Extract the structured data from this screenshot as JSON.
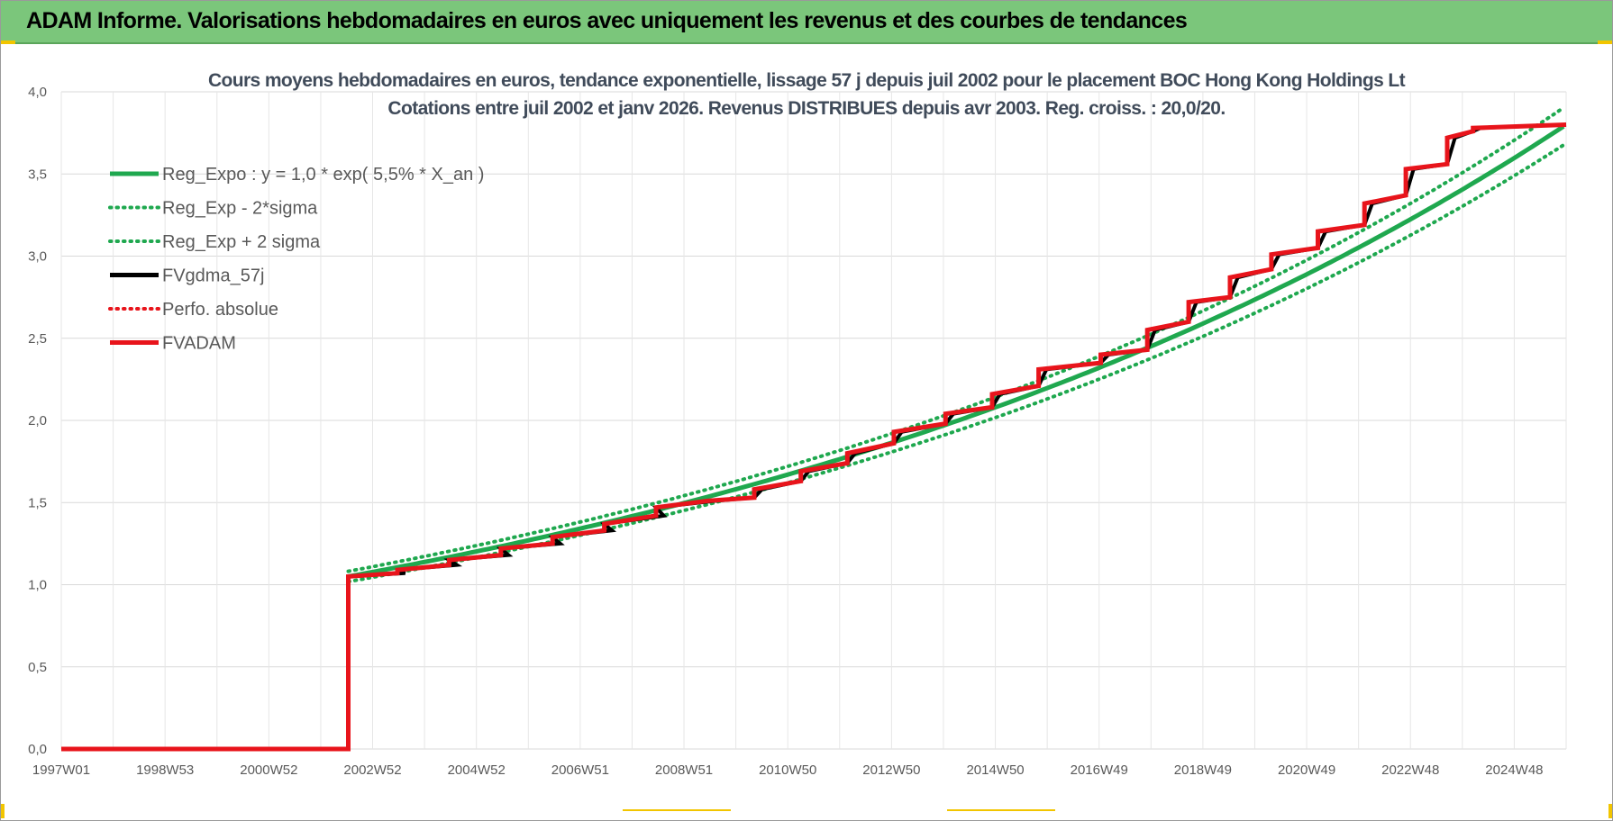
{
  "header": {
    "title": "ADAM Informe. Valorisations hebdomadaires en euros avec uniquement les revenus et des courbes de tendances"
  },
  "colors": {
    "header_bg": "#7bc67b",
    "regression": "#1fa84f",
    "fvgdma": "#000000",
    "fvadam": "#e8141b"
  },
  "chart_data": {
    "type": "line",
    "title_lines": [
      "Cours moyens hebdomadaires en euros, tendance exponentielle, lissage 57 j depuis juil 2002 pour le placement BOC Hong Kong Holdings Lt",
      "Cotations entre juil 2002 et janv 2026. Revenus DISTRIBUES depuis avr 2003. Reg. croiss. : 20,0/20."
    ],
    "x_tick_labels": [
      "1997W01",
      "1998W53",
      "2000W52",
      "2002W52",
      "2004W52",
      "2006W51",
      "2008W51",
      "2010W50",
      "2012W50",
      "2014W50",
      "2016W49",
      "2018W49",
      "2020W49",
      "2022W48",
      "2024W48"
    ],
    "x_range_years": [
      1997.0,
      2026.1
    ],
    "y_tick_labels": [
      "0,0",
      "0,5",
      "1,0",
      "1,5",
      "2,0",
      "2,5",
      "3,0",
      "3,5",
      "4,0"
    ],
    "ylim": [
      0,
      4
    ],
    "legend": [
      {
        "name": "Reg_Expo : y = 1,0 * exp( 5,5% *  X_an )",
        "style": "solid",
        "color": "#1fa84f"
      },
      {
        "name": "Reg_Exp - 2*sigma",
        "style": "dotted",
        "color": "#1fa84f"
      },
      {
        "name": "Reg_Exp + 2 sigma",
        "style": "dotted",
        "color": "#1fa84f"
      },
      {
        "name": "FVgdma_57j",
        "style": "solid",
        "color": "#000000"
      },
      {
        "name": "Perfo. absolue",
        "style": "dotted",
        "color": "#e8141b"
      },
      {
        "name": "FVADAM",
        "style": "solid",
        "color": "#e8141b"
      }
    ],
    "start_year": 2002.55,
    "start_value": 1.05,
    "end_value": 3.8,
    "regression_rate": 0.055,
    "sigma_band": 0.03,
    "fvadam_points": [
      [
        1997.0,
        0.0
      ],
      [
        2002.55,
        0.0
      ],
      [
        2002.55,
        1.05
      ],
      [
        2003.5,
        1.07
      ],
      [
        2003.5,
        1.09
      ],
      [
        2004.5,
        1.12
      ],
      [
        2004.5,
        1.15
      ],
      [
        2005.5,
        1.18
      ],
      [
        2005.5,
        1.22
      ],
      [
        2006.5,
        1.25
      ],
      [
        2006.5,
        1.29
      ],
      [
        2007.5,
        1.33
      ],
      [
        2007.5,
        1.37
      ],
      [
        2008.5,
        1.42
      ],
      [
        2008.5,
        1.47
      ],
      [
        2009.5,
        1.51
      ],
      [
        2010.4,
        1.53
      ],
      [
        2010.4,
        1.58
      ],
      [
        2011.3,
        1.63
      ],
      [
        2011.3,
        1.69
      ],
      [
        2012.2,
        1.74
      ],
      [
        2012.2,
        1.8
      ],
      [
        2013.1,
        1.86
      ],
      [
        2013.1,
        1.93
      ],
      [
        2014.1,
        1.98
      ],
      [
        2014.1,
        2.04
      ],
      [
        2015.0,
        2.08
      ],
      [
        2015.0,
        2.16
      ],
      [
        2015.9,
        2.21
      ],
      [
        2015.9,
        2.31
      ],
      [
        2017.1,
        2.35
      ],
      [
        2017.1,
        2.4
      ],
      [
        2018.0,
        2.43
      ],
      [
        2018.0,
        2.55
      ],
      [
        2018.8,
        2.6
      ],
      [
        2018.8,
        2.72
      ],
      [
        2019.6,
        2.75
      ],
      [
        2019.6,
        2.87
      ],
      [
        2020.4,
        2.92
      ],
      [
        2020.4,
        3.01
      ],
      [
        2021.3,
        3.05
      ],
      [
        2021.3,
        3.15
      ],
      [
        2022.2,
        3.19
      ],
      [
        2022.2,
        3.32
      ],
      [
        2023.0,
        3.37
      ],
      [
        2023.0,
        3.53
      ],
      [
        2023.8,
        3.56
      ],
      [
        2023.8,
        3.72
      ],
      [
        2024.3,
        3.76
      ],
      [
        2024.3,
        3.78
      ],
      [
        2026.1,
        3.8
      ]
    ]
  }
}
